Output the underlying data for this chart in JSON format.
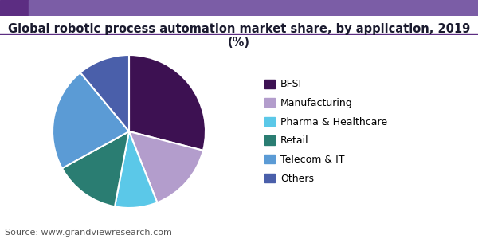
{
  "title": "Global robotic process automation market share, by application, 2019 (%)",
  "labels": [
    "BFSI",
    "Manufacturing",
    "Pharma & Healthcare",
    "Retail",
    "Telecom & IT",
    "Others"
  ],
  "values": [
    29,
    15,
    9,
    14,
    22,
    11
  ],
  "colors": [
    "#3d1152",
    "#b39dcc",
    "#5bc8e8",
    "#2a7d72",
    "#5b9bd5",
    "#4a5faa"
  ],
  "source": "Source: www.grandviewresearch.com",
  "title_fontsize": 10.5,
  "legend_fontsize": 9,
  "source_fontsize": 8,
  "start_angle": 90,
  "background_color": "#ffffff",
  "header_left_color": "#5c2d82",
  "header_right_color": "#7b5ea7",
  "title_color": "#1a1a2e"
}
